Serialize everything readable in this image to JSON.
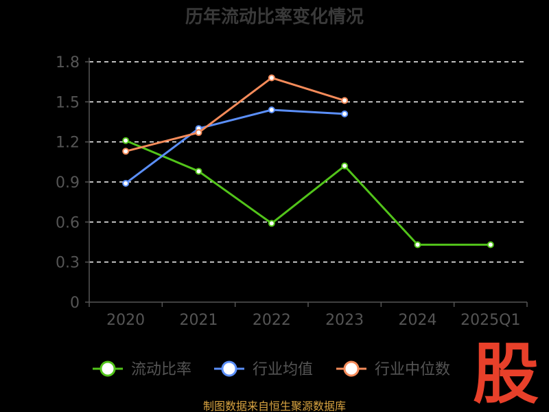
{
  "chart_data": {
    "type": "line",
    "title": "历年流动比率变化情况",
    "categories": [
      "2020",
      "2021",
      "2022",
      "2023",
      "2024",
      "2025Q1"
    ],
    "y_ticks": [
      "0",
      "0.3",
      "0.6",
      "0.9",
      "1.2",
      "1.5",
      "1.8"
    ],
    "ylim": [
      0,
      1.8
    ],
    "grid": true,
    "legend_position": "bottom",
    "series": [
      {
        "name": "流动比率",
        "color": "#52c41a",
        "values": [
          1.21,
          0.98,
          0.59,
          1.02,
          0.43,
          0.43
        ]
      },
      {
        "name": "行业均值",
        "color": "#5b8ff9",
        "values": [
          0.89,
          1.3,
          1.44,
          1.41,
          null,
          null
        ]
      },
      {
        "name": "行业中位数",
        "color": "#f58b5a",
        "values": [
          1.13,
          1.27,
          1.68,
          1.51,
          null,
          null
        ]
      }
    ],
    "source": "制图数据来自恒生聚源数据库",
    "watermark": "股"
  }
}
